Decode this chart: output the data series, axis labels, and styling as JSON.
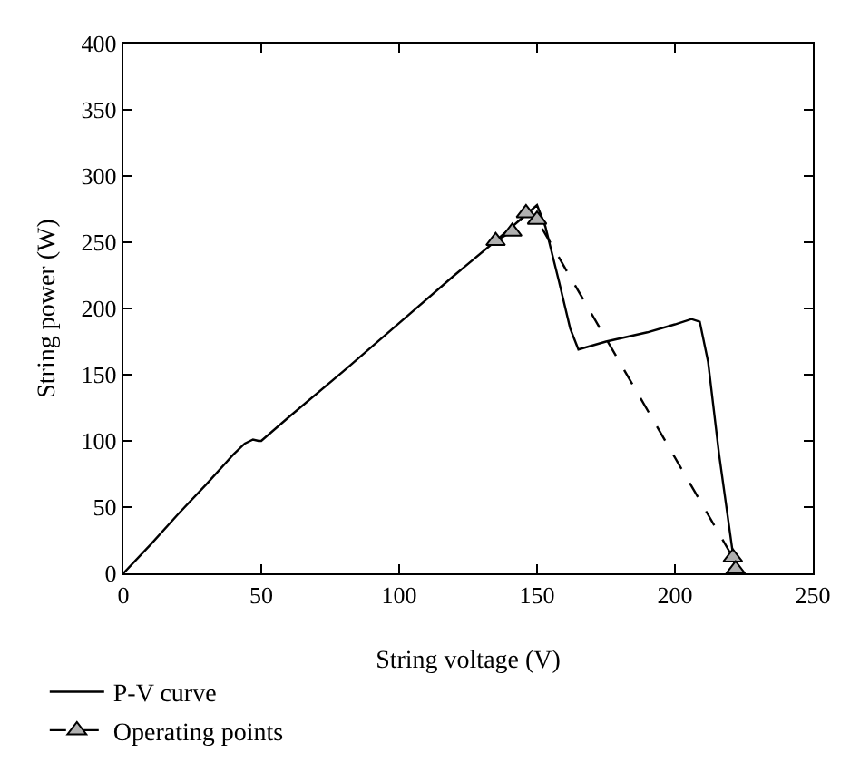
{
  "chart_data": {
    "type": "line",
    "xlabel": "String voltage (V)",
    "ylabel": "String power (W)",
    "xlim": [
      0,
      250
    ],
    "ylim": [
      0,
      400
    ],
    "xticks": [
      0,
      50,
      100,
      150,
      200,
      250
    ],
    "yticks": [
      0,
      50,
      100,
      150,
      200,
      250,
      300,
      350,
      400
    ],
    "grid": false,
    "legend": "bottom left",
    "series": [
      {
        "name": "P-V curve",
        "color": "#000000",
        "marker": "none",
        "line_style": "solid",
        "x": [
          0,
          10,
          20,
          30,
          40,
          44,
          47,
          49,
          50,
          60,
          80,
          100,
          120,
          135,
          145,
          150,
          153,
          158,
          162,
          165,
          175,
          190,
          200,
          206,
          209,
          212,
          216,
          220,
          222
        ],
        "values": [
          0,
          22,
          45,
          67,
          90,
          98,
          101,
          100,
          100,
          118,
          153,
          189,
          225,
          251,
          269,
          278,
          262,
          220,
          185,
          169,
          175,
          182,
          188,
          192,
          190,
          160,
          90,
          30,
          0
        ]
      },
      {
        "name": "Operating points",
        "color": "#000000",
        "marker": "triangle",
        "line_style": "dashed",
        "x": [
          135,
          141,
          146,
          150,
          221,
          222
        ],
        "values": [
          251,
          258,
          272,
          267,
          12,
          3
        ]
      }
    ]
  }
}
